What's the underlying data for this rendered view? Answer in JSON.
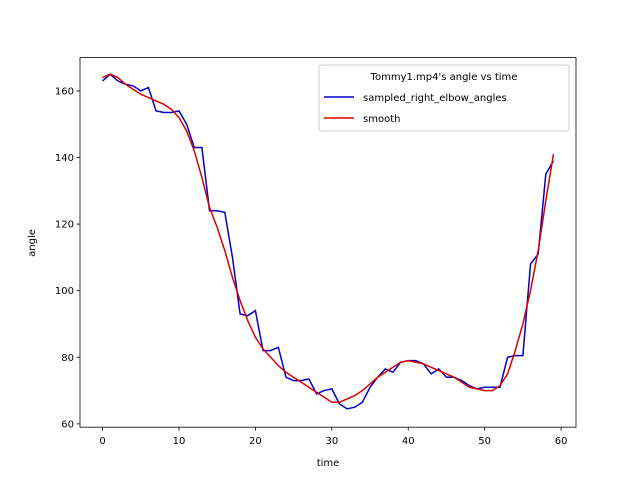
{
  "chart_data": {
    "type": "line",
    "legend_title": "Tommy1.mp4's angle vs time",
    "x_label": "time",
    "y_label": "angle",
    "legend": "upper right",
    "x": [
      0,
      1,
      2,
      3,
      4,
      5,
      6,
      7,
      8,
      9,
      10,
      11,
      12,
      13,
      14,
      15,
      16,
      17,
      18,
      19,
      20,
      21,
      22,
      23,
      24,
      25,
      26,
      27,
      28,
      29,
      30,
      31,
      32,
      33,
      34,
      35,
      36,
      37,
      38,
      39,
      40,
      41,
      42,
      43,
      44,
      45,
      46,
      47,
      48,
      49,
      50,
      51,
      52,
      53,
      54,
      55,
      56,
      57,
      58,
      59
    ],
    "series": [
      {
        "name": "sampled_right_elbow_angles",
        "color": "#0000cc",
        "values": [
          163,
          165,
          163,
          162,
          161.5,
          160,
          161,
          154,
          153.5,
          153.5,
          154,
          150,
          143,
          143,
          124,
          124,
          123.5,
          110,
          93,
          92.5,
          94,
          82,
          82,
          83,
          74,
          73,
          73,
          73.5,
          69,
          70,
          70.5,
          66,
          64.5,
          65,
          66.5,
          71,
          74,
          76.5,
          75.5,
          78.5,
          79,
          79,
          78,
          75,
          76.5,
          74,
          74,
          73,
          71.5,
          70.5,
          71,
          71,
          71,
          80,
          80.5,
          80.5,
          108,
          111,
          135,
          139
        ]
      },
      {
        "name": "smooth",
        "color": "#dd0000",
        "values": [
          164,
          165,
          164,
          162,
          160.5,
          159,
          158,
          157,
          156,
          154.5,
          152,
          148,
          142,
          134,
          125,
          119,
          112,
          104,
          97,
          91,
          86,
          82.5,
          80,
          77.5,
          75.5,
          74,
          72.5,
          71,
          69.5,
          68,
          66.5,
          66.5,
          67.5,
          68.5,
          70,
          72,
          74,
          75.5,
          77,
          78.5,
          79,
          78.5,
          78,
          77,
          76,
          75,
          74,
          72.5,
          71,
          70.5,
          70,
          70,
          71.5,
          75,
          82,
          90,
          100,
          112,
          127,
          141
        ]
      }
    ],
    "xlim": [
      -2.95,
      61.95
    ],
    "xticks": [
      0,
      10,
      20,
      30,
      40,
      50,
      60
    ],
    "ylim": [
      59,
      170
    ],
    "yticks": [
      60,
      80,
      100,
      120,
      140,
      160
    ]
  }
}
